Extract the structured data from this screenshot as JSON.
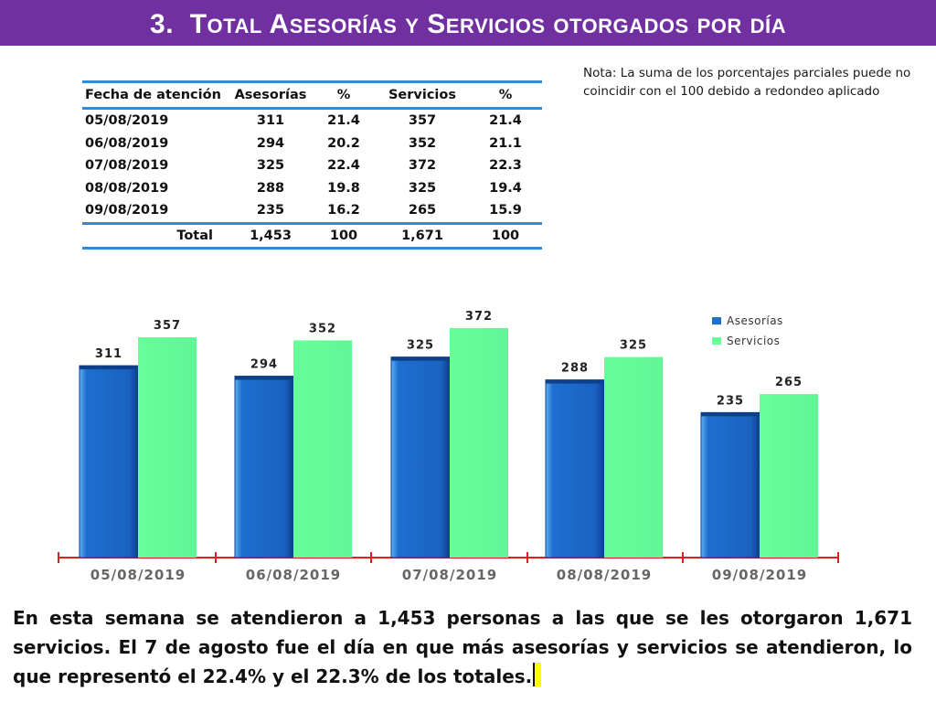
{
  "title": {
    "number": "3.",
    "parts": [
      {
        "cap": "T",
        "rest": "otal"
      },
      {
        "cap": "A",
        "rest": "sesorías"
      },
      {
        "cap": "",
        "rest": "y"
      },
      {
        "cap": "S",
        "rest": "ervicios"
      },
      {
        "cap": "",
        "rest": "otorgados"
      },
      {
        "cap": "",
        "rest": "por"
      },
      {
        "cap": "",
        "rest": "día"
      }
    ]
  },
  "note": "Nota: La suma de los porcentajes parciales puede no coincidir con el 100 debido a redondeo aplicado",
  "table": {
    "headers": [
      "Fecha de atención",
      "Asesorías",
      "%",
      "Servicios",
      "%"
    ],
    "rows": [
      [
        "05/08/2019",
        "311",
        "21.4",
        "357",
        "21.4"
      ],
      [
        "06/08/2019",
        "294",
        "20.2",
        "352",
        "21.1"
      ],
      [
        "07/08/2019",
        "325",
        "22.4",
        "372",
        "22.3"
      ],
      [
        "08/08/2019",
        "288",
        "19.8",
        "325",
        "19.4"
      ],
      [
        "09/08/2019",
        "235",
        "16.2",
        "265",
        "15.9"
      ]
    ],
    "total": [
      "Total",
      "1,453",
      "100",
      "1,671",
      "100"
    ]
  },
  "chart_data": {
    "type": "bar",
    "categories": [
      "05/08/2019",
      "06/08/2019",
      "07/08/2019",
      "08/08/2019",
      "09/08/2019"
    ],
    "series": [
      {
        "name": "Asesorías",
        "values": [
          311,
          294,
          325,
          288,
          235
        ],
        "color": "#1e6fd0"
      },
      {
        "name": "Servicios",
        "values": [
          357,
          352,
          372,
          325,
          265
        ],
        "color": "#66ff99"
      }
    ],
    "ylim": [
      0,
      400
    ],
    "legend": "top-right",
    "grid": false,
    "axis_color": "#e02020"
  },
  "paragraph": "En esta semana se atendieron a 1,453 personas a las que se les otorgaron 1,671 servicios. El 7 de agosto fue el día en que más asesorías y servicios se atendieron, lo que representó  el 22.4% y el 22.3% de los totales."
}
